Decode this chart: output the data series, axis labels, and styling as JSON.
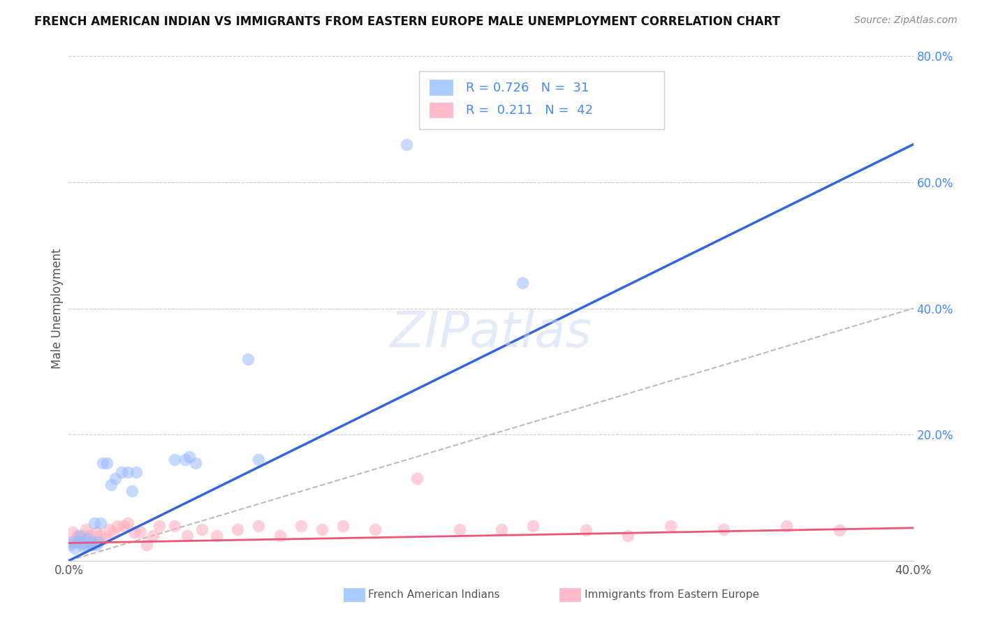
{
  "title": "FRENCH AMERICAN INDIAN VS IMMIGRANTS FROM EASTERN EUROPE MALE UNEMPLOYMENT CORRELATION CHART",
  "source": "Source: ZipAtlas.com",
  "ylabel": "Male Unemployment",
  "xlim": [
    0.0,
    0.4
  ],
  "ylim": [
    0.0,
    0.8
  ],
  "blue_color": "#99bbff",
  "pink_color": "#ffaabb",
  "blue_line_color": "#3366dd",
  "pink_line_color": "#ee5577",
  "diag_line_color": "#bbbbbb",
  "watermark": "ZIPatlas",
  "blue_scatter_x": [
    0.001,
    0.002,
    0.003,
    0.004,
    0.005,
    0.006,
    0.007,
    0.008,
    0.009,
    0.01,
    0.011,
    0.012,
    0.013,
    0.014,
    0.015,
    0.016,
    0.018,
    0.02,
    0.022,
    0.025,
    0.028,
    0.03,
    0.032,
    0.05,
    0.055,
    0.057,
    0.06,
    0.085,
    0.09,
    0.16,
    0.215
  ],
  "blue_scatter_y": [
    0.025,
    0.03,
    0.02,
    0.03,
    0.04,
    0.028,
    0.022,
    0.025,
    0.035,
    0.03,
    0.025,
    0.06,
    0.025,
    0.03,
    0.06,
    0.155,
    0.155,
    0.12,
    0.13,
    0.14,
    0.14,
    0.11,
    0.14,
    0.16,
    0.16,
    0.165,
    0.155,
    0.32,
    0.16,
    0.66,
    0.44
  ],
  "pink_scatter_x": [
    0.001,
    0.002,
    0.004,
    0.005,
    0.007,
    0.008,
    0.01,
    0.011,
    0.013,
    0.015,
    0.017,
    0.019,
    0.021,
    0.023,
    0.026,
    0.028,
    0.031,
    0.034,
    0.037,
    0.04,
    0.043,
    0.05,
    0.056,
    0.063,
    0.07,
    0.08,
    0.09,
    0.1,
    0.11,
    0.12,
    0.13,
    0.145,
    0.165,
    0.185,
    0.205,
    0.22,
    0.245,
    0.265,
    0.285,
    0.31,
    0.34,
    0.365
  ],
  "pink_scatter_y": [
    0.03,
    0.045,
    0.04,
    0.035,
    0.04,
    0.05,
    0.04,
    0.03,
    0.045,
    0.04,
    0.035,
    0.05,
    0.045,
    0.055,
    0.055,
    0.06,
    0.045,
    0.045,
    0.025,
    0.04,
    0.055,
    0.055,
    0.04,
    0.05,
    0.04,
    0.05,
    0.055,
    0.04,
    0.055,
    0.05,
    0.055,
    0.05,
    0.13,
    0.05,
    0.05,
    0.055,
    0.048,
    0.04,
    0.055,
    0.05,
    0.055,
    0.048
  ],
  "blue_line_x0": 0.0,
  "blue_line_x1": 0.4,
  "blue_line_y0": 0.0,
  "blue_line_y1": 0.66,
  "pink_line_x0": 0.0,
  "pink_line_x1": 0.4,
  "pink_line_y0": 0.028,
  "pink_line_y1": 0.052,
  "grid_color": "#cccccc",
  "legend_items": [
    {
      "color": "#aaccff",
      "r": "0.726",
      "n": "31"
    },
    {
      "color": "#ffbbcc",
      "r": "0.211",
      "n": "42"
    }
  ],
  "bottom_legend": [
    {
      "color": "#aaccff",
      "label": "French American Indians"
    },
    {
      "color": "#ffbbcc",
      "label": "Immigrants from Eastern Europe"
    }
  ]
}
